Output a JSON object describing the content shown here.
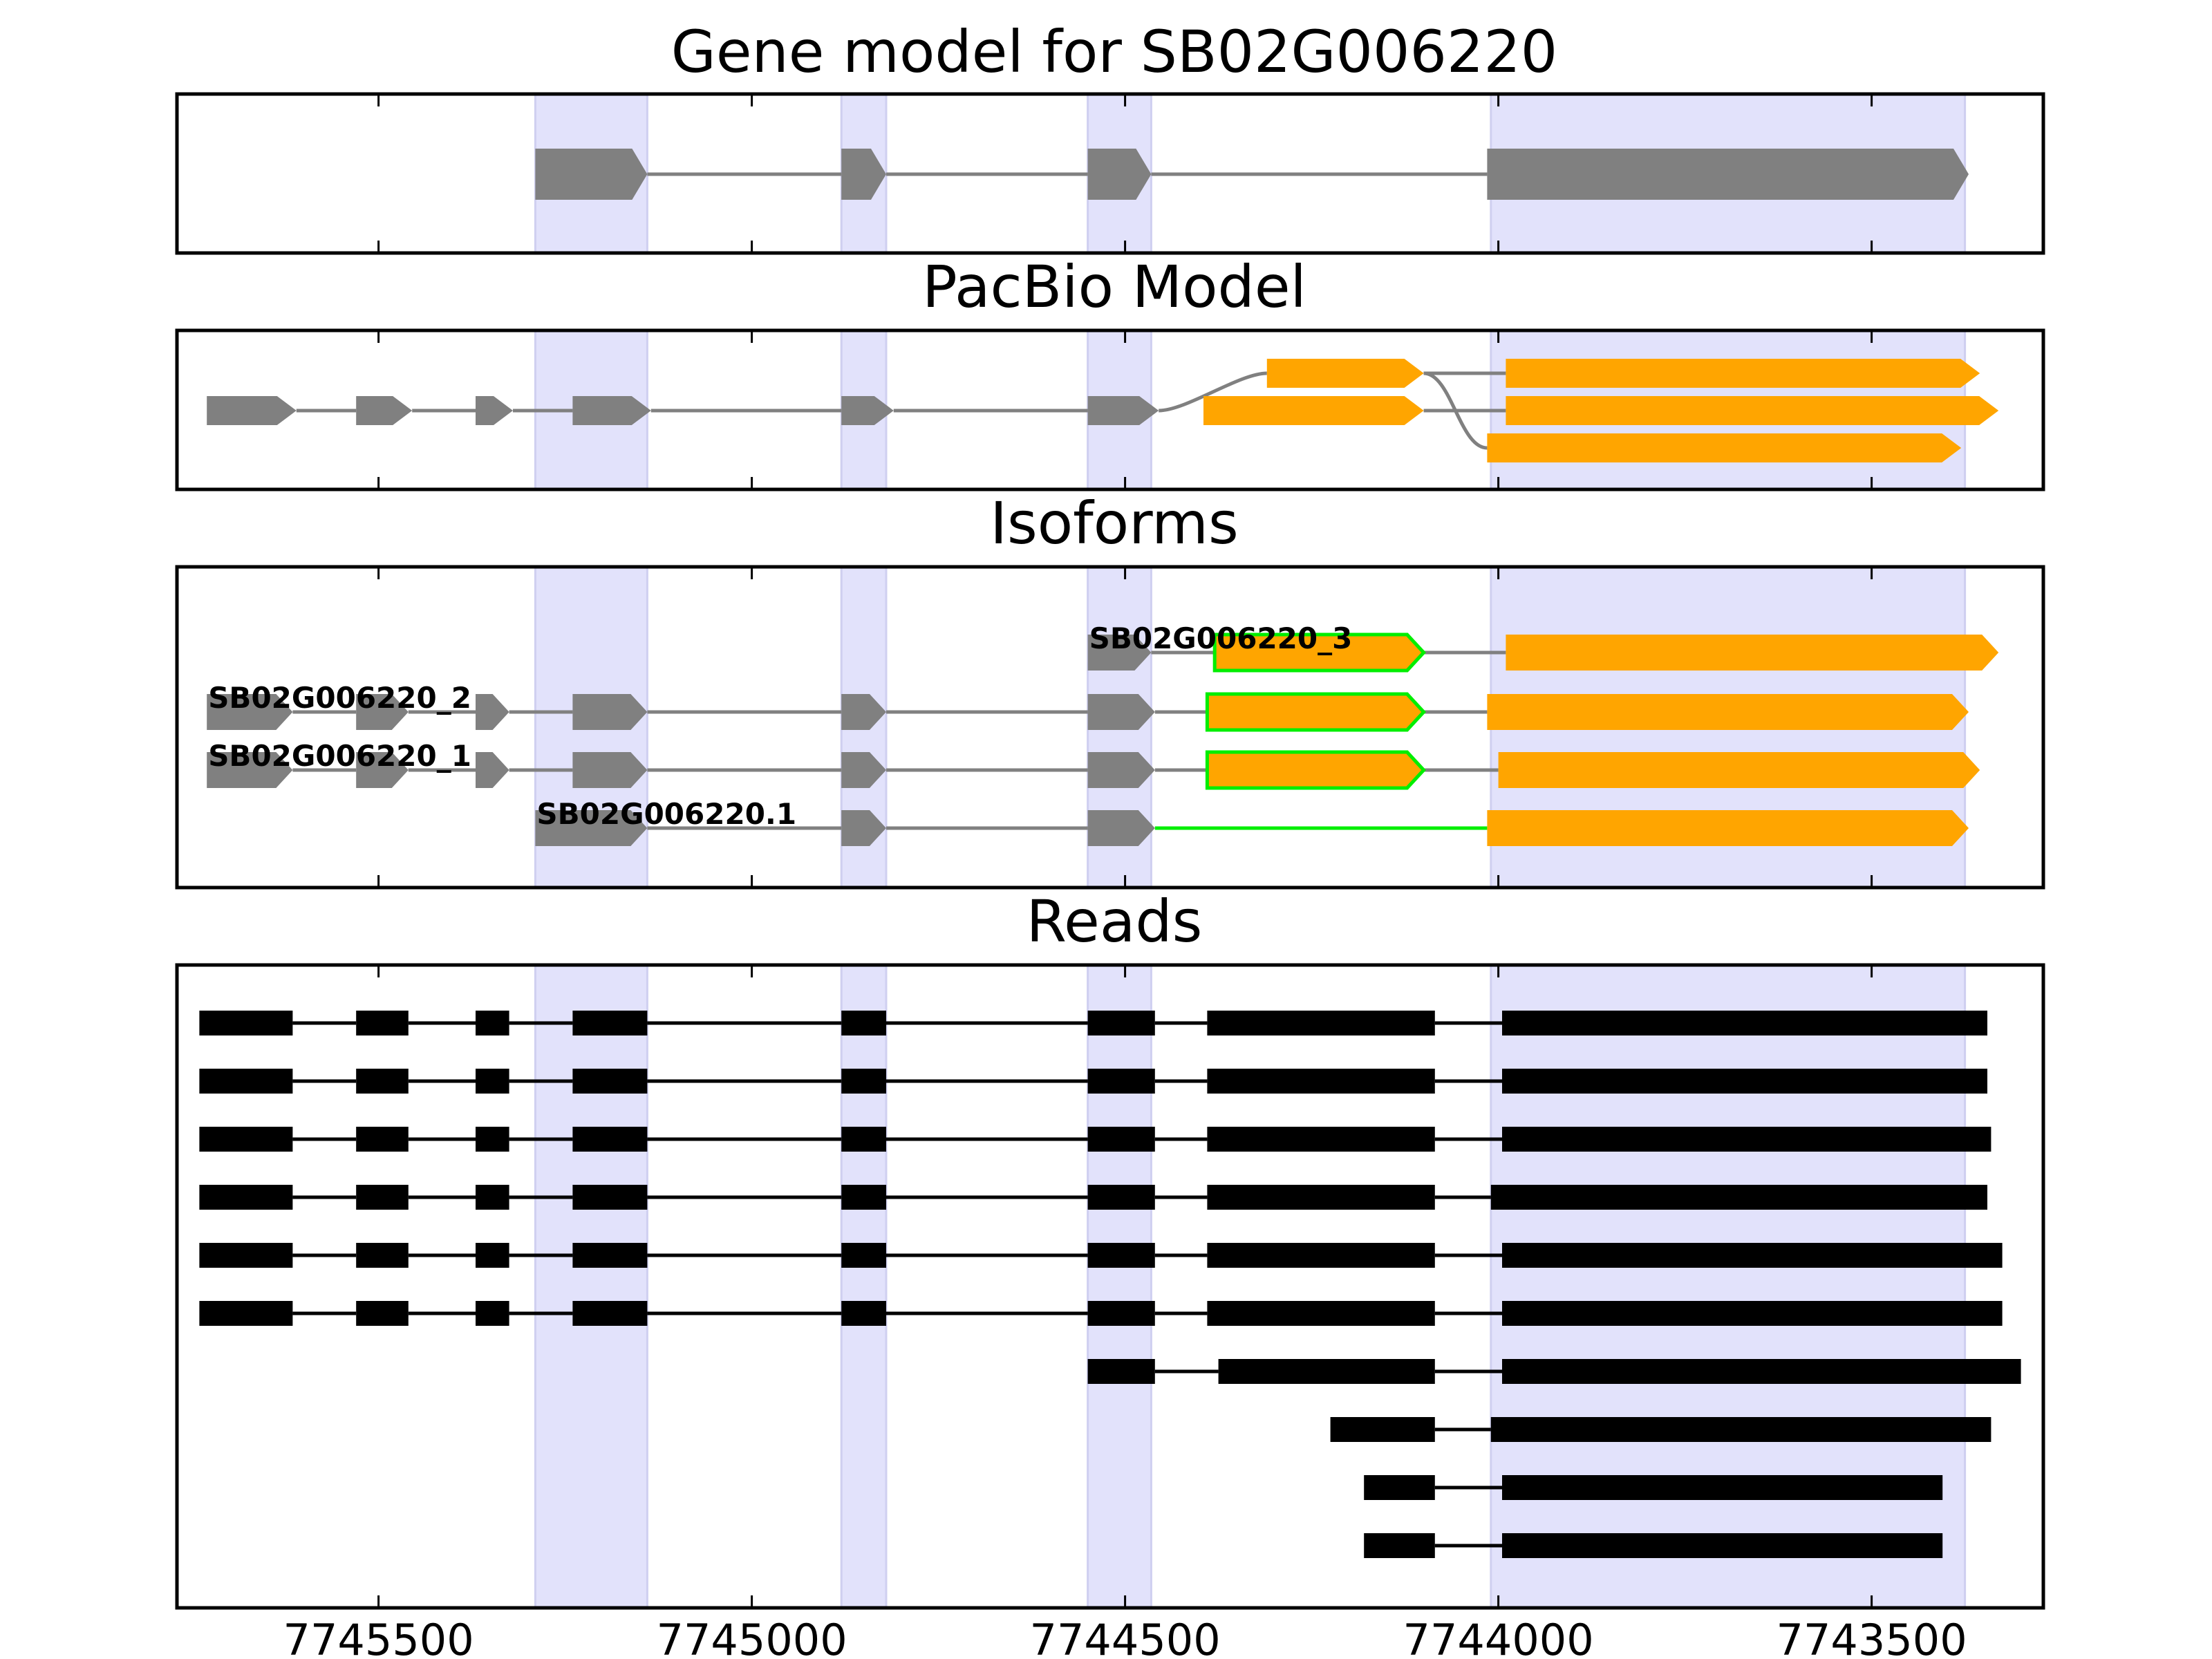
{
  "figure": {
    "x_axis": {
      "reversed": true,
      "range": [
        7745770,
        7743270
      ],
      "ticks": [
        7745500,
        7745000,
        7744500,
        7744000,
        7743500
      ],
      "tick_labels": [
        "7745500",
        "7745000",
        "7744500",
        "7744000",
        "7743500"
      ]
    },
    "highlight_color": "#e2e2fb",
    "colors": {
      "gene": "#808080",
      "pacbio_new": "#ffa500",
      "novel_outline": "#00ee00",
      "read": "#000000",
      "intron": "#808080"
    },
    "highlight_regions": [
      [
        7745290,
        7745140
      ],
      [
        7744880,
        7744820
      ],
      [
        7744550,
        7744465
      ],
      [
        7744010,
        7743375
      ]
    ]
  },
  "chart_data": [
    {
      "type": "gene_model",
      "title": "Gene model for SB02G006220",
      "tracks": [
        {
          "exons": [
            [
              7745290,
              7745140,
              "gene"
            ],
            [
              7744880,
              7744820,
              "gene"
            ],
            [
              7744550,
              7744465,
              "gene"
            ],
            [
              7744015,
              7743370,
              "gene"
            ]
          ]
        }
      ]
    },
    {
      "type": "gene_model",
      "title": "PacBio Model",
      "tracks": [
        {
          "exons": [
            [
              7745730,
              7745610,
              "gene"
            ],
            [
              7745530,
              7745455,
              "gene"
            ],
            [
              7745370,
              7745320,
              "gene"
            ],
            [
              7745240,
              7745135,
              "gene"
            ],
            [
              7744880,
              7744810,
              "gene"
            ],
            [
              7744550,
              7744455,
              "gene"
            ],
            [
              7744310,
              7744100,
              "pacbio_new"
            ],
            [
              7743990,
              7743355,
              "pacbio_new"
            ]
          ]
        },
        {
          "exons": [
            [
              7744395,
              7744100,
              "pacbio_new"
            ],
            [
              7743990,
              7743330,
              "pacbio_new"
            ]
          ]
        },
        {
          "exons": [
            [
              7744015,
              7743380,
              "pacbio_new"
            ]
          ]
        }
      ]
    },
    {
      "type": "gene_model",
      "title": "Isoforms",
      "tracks": [
        {
          "label": "SB02G006220_3",
          "exons": [
            [
              7744550,
              7744465,
              "gene"
            ],
            [
              7744380,
              7744100,
              "novel"
            ],
            [
              7743990,
              7743330,
              "pacbio_new"
            ]
          ]
        },
        {
          "label": "SB02G006220_2",
          "exons": [
            [
              7745730,
              7745615,
              "gene"
            ],
            [
              7745530,
              7745460,
              "gene"
            ],
            [
              7745370,
              7745325,
              "gene"
            ],
            [
              7745240,
              7745140,
              "gene"
            ],
            [
              7744880,
              7744820,
              "gene"
            ],
            [
              7744550,
              7744460,
              "gene"
            ],
            [
              7744390,
              7744100,
              "novel"
            ],
            [
              7744015,
              7743370,
              "pacbio_new"
            ]
          ]
        },
        {
          "label": "SB02G006220_1",
          "exons": [
            [
              7745730,
              7745615,
              "gene"
            ],
            [
              7745530,
              7745460,
              "gene"
            ],
            [
              7745370,
              7745325,
              "gene"
            ],
            [
              7745240,
              7745140,
              "gene"
            ],
            [
              7744880,
              7744820,
              "gene"
            ],
            [
              7744550,
              7744460,
              "gene"
            ],
            [
              7744390,
              7744100,
              "novel"
            ],
            [
              7744000,
              7743355,
              "pacbio_new"
            ]
          ]
        },
        {
          "label": "SB02G006220.1",
          "exons": [
            [
              7745290,
              7745140,
              "gene"
            ],
            [
              7744880,
              7744820,
              "gene"
            ],
            [
              7744550,
              7744460,
              "gene"
            ],
            [
              7744015,
              7743370,
              "pacbio_new"
            ]
          ],
          "novel_intron_after": 2
        }
      ]
    },
    {
      "type": "gene_model",
      "title": "Reads",
      "tracks": [
        {
          "exons": [
            [
              7745740,
              7745615
            ],
            [
              7745530,
              7745460
            ],
            [
              7745370,
              7745325
            ],
            [
              7745240,
              7745140
            ],
            [
              7744880,
              7744820
            ],
            [
              7744550,
              7744460
            ],
            [
              7744390,
              7744085
            ],
            [
              7743995,
              7743345
            ]
          ]
        },
        {
          "exons": [
            [
              7745740,
              7745615
            ],
            [
              7745530,
              7745460
            ],
            [
              7745370,
              7745325
            ],
            [
              7745240,
              7745140
            ],
            [
              7744880,
              7744820
            ],
            [
              7744550,
              7744460
            ],
            [
              7744390,
              7744085
            ],
            [
              7743995,
              7743345
            ]
          ]
        },
        {
          "exons": [
            [
              7745740,
              7745615
            ],
            [
              7745530,
              7745460
            ],
            [
              7745370,
              7745325
            ],
            [
              7745240,
              7745140
            ],
            [
              7744880,
              7744820
            ],
            [
              7744550,
              7744460
            ],
            [
              7744390,
              7744085
            ],
            [
              7743995,
              7743340
            ]
          ]
        },
        {
          "exons": [
            [
              7745740,
              7745615
            ],
            [
              7745530,
              7745460
            ],
            [
              7745370,
              7745325
            ],
            [
              7745240,
              7745140
            ],
            [
              7744880,
              7744820
            ],
            [
              7744550,
              7744460
            ],
            [
              7744390,
              7744085
            ],
            [
              7744010,
              7743345
            ]
          ]
        },
        {
          "exons": [
            [
              7745740,
              7745615
            ],
            [
              7745530,
              7745460
            ],
            [
              7745370,
              7745325
            ],
            [
              7745240,
              7745140
            ],
            [
              7744880,
              7744820
            ],
            [
              7744550,
              7744460
            ],
            [
              7744390,
              7744085
            ],
            [
              7743995,
              7743325
            ]
          ]
        },
        {
          "exons": [
            [
              7745740,
              7745615
            ],
            [
              7745530,
              7745460
            ],
            [
              7745370,
              7745325
            ],
            [
              7745240,
              7745140
            ],
            [
              7744880,
              7744820
            ],
            [
              7744550,
              7744460
            ],
            [
              7744390,
              7744085
            ],
            [
              7743995,
              7743325
            ]
          ]
        },
        {
          "exons": [
            [
              7744550,
              7744460
            ],
            [
              7744375,
              7744085
            ],
            [
              7743995,
              7743300
            ]
          ]
        },
        {
          "exons": [
            [
              7744225,
              7744085
            ],
            [
              7744010,
              7743340
            ]
          ]
        },
        {
          "exons": [
            [
              7744180,
              7744085
            ],
            [
              7743995,
              7743405
            ]
          ]
        },
        {
          "exons": [
            [
              7744180,
              7744085
            ],
            [
              7743995,
              7743405
            ]
          ]
        }
      ]
    }
  ]
}
